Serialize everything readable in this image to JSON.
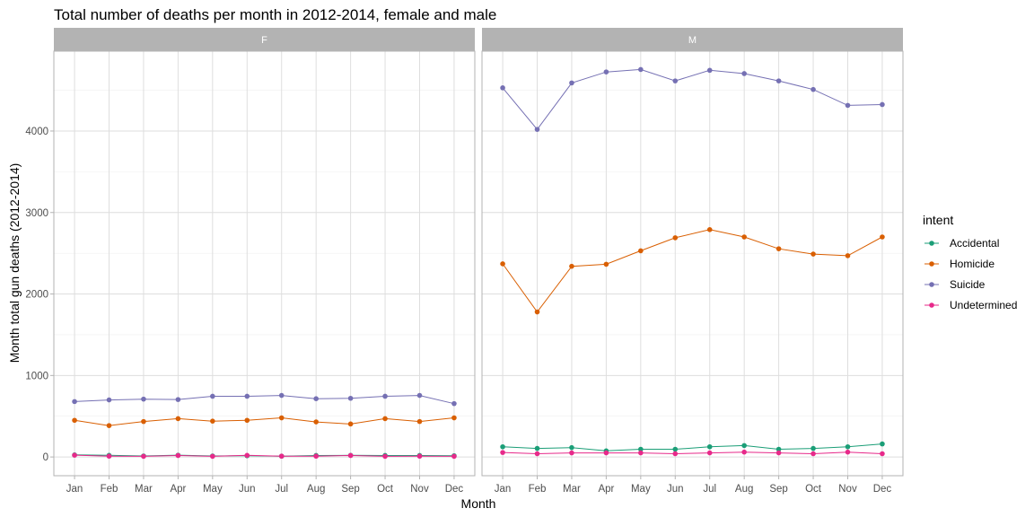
{
  "chart_data": {
    "type": "line",
    "title": "Total number of deaths per month in 2012-2014, female and male",
    "xlabel": "Month",
    "ylabel": "Month total gun deaths (2012-2014)",
    "ylim": [
      -230,
      4980
    ],
    "yticks": [
      0,
      1000,
      2000,
      3000,
      4000
    ],
    "categories": [
      "Jan",
      "Feb",
      "Mar",
      "Apr",
      "May",
      "Jun",
      "Jul",
      "Aug",
      "Sep",
      "Oct",
      "Nov",
      "Dec"
    ],
    "grid": true,
    "legend": {
      "title": "intent",
      "position": "right"
    },
    "facets": [
      {
        "label": "F",
        "series": [
          {
            "name": "Accidental",
            "color": "#1b9e77",
            "values": [
              25,
              20,
              12,
              22,
              12,
              15,
              10,
              18,
              20,
              18,
              18,
              15
            ]
          },
          {
            "name": "Homicide",
            "color": "#d95f02",
            "values": [
              450,
              385,
              435,
              470,
              440,
              450,
              480,
              430,
              405,
              470,
              435,
              480
            ]
          },
          {
            "name": "Suicide",
            "color": "#7570b3",
            "values": [
              680,
              700,
              710,
              705,
              745,
              745,
              755,
              715,
              720,
              745,
              755,
              655
            ]
          },
          {
            "name": "Undetermined",
            "color": "#e7298a",
            "values": [
              22,
              10,
              8,
              18,
              8,
              20,
              10,
              10,
              18,
              8,
              10,
              8
            ]
          }
        ]
      },
      {
        "label": "M",
        "series": [
          {
            "name": "Accidental",
            "color": "#1b9e77",
            "values": [
              125,
              105,
              115,
              75,
              95,
              95,
              125,
              140,
              95,
              105,
              125,
              160
            ]
          },
          {
            "name": "Homicide",
            "color": "#d95f02",
            "values": [
              2370,
              1780,
              2340,
              2365,
              2530,
              2690,
              2790,
              2700,
              2555,
              2490,
              2470,
              2700
            ]
          },
          {
            "name": "Suicide",
            "color": "#7570b3",
            "values": [
              4530,
              4020,
              4590,
              4725,
              4755,
              4615,
              4745,
              4705,
              4615,
              4510,
              4315,
              4325
            ]
          },
          {
            "name": "Undetermined",
            "color": "#e7298a",
            "values": [
              55,
              40,
              50,
              50,
              50,
              40,
              50,
              60,
              50,
              40,
              60,
              40
            ]
          }
        ]
      }
    ]
  }
}
